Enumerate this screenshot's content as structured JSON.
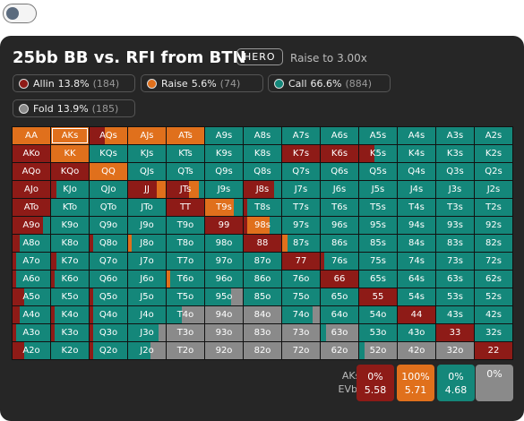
{
  "header": {
    "title": "25bb BB vs. RFI from BTN",
    "badge": "HERO",
    "subtitle": "Raise to 3.00x"
  },
  "legend": [
    {
      "name": "Allin",
      "pct": "13.8%",
      "combos": "(184)",
      "color": "#8e1b17"
    },
    {
      "name": "Raise",
      "pct": "5.6%",
      "combos": "(74)",
      "color": "#e0701c"
    },
    {
      "name": "Call",
      "pct": "66.6%",
      "combos": "(884)",
      "color": "#14877a"
    },
    {
      "name": "Fold",
      "pct": "13.9%",
      "combos": "(185)",
      "color": "#8a8a8a"
    }
  ],
  "grid": {
    "selected": "AKs",
    "labels": [
      [
        "AA",
        "AKs",
        "AQs",
        "AJs",
        "ATs",
        "A9s",
        "A8s",
        "A7s",
        "A6s",
        "A5s",
        "A4s",
        "A3s",
        "A2s"
      ],
      [
        "AKo",
        "KK",
        "KQs",
        "KJs",
        "KTs",
        "K9s",
        "K8s",
        "K7s",
        "K6s",
        "K5s",
        "K4s",
        "K3s",
        "K2s"
      ],
      [
        "AQo",
        "KQo",
        "QQ",
        "QJs",
        "QTs",
        "Q9s",
        "Q8s",
        "Q7s",
        "Q6s",
        "Q5s",
        "Q4s",
        "Q3s",
        "Q2s"
      ],
      [
        "AJo",
        "KJo",
        "QJo",
        "JJ",
        "JTs",
        "J9s",
        "J8s",
        "J7s",
        "J6s",
        "J5s",
        "J4s",
        "J3s",
        "J2s"
      ],
      [
        "ATo",
        "KTo",
        "QTo",
        "JTo",
        "TT",
        "T9s",
        "T8s",
        "T7s",
        "T6s",
        "T5s",
        "T4s",
        "T3s",
        "T2s"
      ],
      [
        "A9o",
        "K9o",
        "Q9o",
        "J9o",
        "T9o",
        "99",
        "98s",
        "97s",
        "96s",
        "95s",
        "94s",
        "93s",
        "92s"
      ],
      [
        "A8o",
        "K8o",
        "Q8o",
        "J8o",
        "T8o",
        "98o",
        "88",
        "87s",
        "86s",
        "85s",
        "84s",
        "83s",
        "82s"
      ],
      [
        "A7o",
        "K7o",
        "Q7o",
        "J7o",
        "T7o",
        "97o",
        "87o",
        "77",
        "76s",
        "75s",
        "74s",
        "73s",
        "72s"
      ],
      [
        "A6o",
        "K6o",
        "Q6o",
        "J6o",
        "T6o",
        "96o",
        "86o",
        "76o",
        "66",
        "65s",
        "64s",
        "63s",
        "62s"
      ],
      [
        "A5o",
        "K5o",
        "Q5o",
        "J5o",
        "T5o",
        "95o",
        "85o",
        "75o",
        "65o",
        "55",
        "54s",
        "53s",
        "52s"
      ],
      [
        "A4o",
        "K4o",
        "Q4o",
        "J4o",
        "T4o",
        "94o",
        "84o",
        "74o",
        "64o",
        "54o",
        "44",
        "43s",
        "42s"
      ],
      [
        "A3o",
        "K3o",
        "Q3o",
        "J3o",
        "T3o",
        "93o",
        "83o",
        "73o",
        "63o",
        "53o",
        "43o",
        "33",
        "32s"
      ],
      [
        "A2o",
        "K2o",
        "Q2o",
        "J2o",
        "T2o",
        "92o",
        "82o",
        "72o",
        "62o",
        "52o",
        "42o",
        "32o",
        "22"
      ]
    ],
    "mix": [
      [
        [
          0,
          100,
          0,
          0
        ],
        [
          0,
          100,
          0,
          0
        ],
        [
          40,
          60,
          0,
          0
        ],
        [
          0,
          100,
          0,
          0
        ],
        [
          0,
          100,
          0,
          0
        ],
        [
          0,
          0,
          100,
          0
        ],
        [
          0,
          0,
          100,
          0
        ],
        [
          0,
          0,
          100,
          0
        ],
        [
          0,
          0,
          100,
          0
        ],
        [
          0,
          0,
          100,
          0
        ],
        [
          0,
          0,
          100,
          0
        ],
        [
          0,
          0,
          100,
          0
        ],
        [
          0,
          0,
          100,
          0
        ]
      ],
      [
        [
          100,
          0,
          0,
          0
        ],
        [
          0,
          100,
          0,
          0
        ],
        [
          0,
          0,
          100,
          0
        ],
        [
          0,
          0,
          100,
          0
        ],
        [
          0,
          0,
          100,
          0
        ],
        [
          0,
          0,
          100,
          0
        ],
        [
          0,
          0,
          100,
          0
        ],
        [
          100,
          0,
          0,
          0
        ],
        [
          100,
          0,
          0,
          0
        ],
        [
          40,
          0,
          60,
          0
        ],
        [
          0,
          0,
          100,
          0
        ],
        [
          0,
          0,
          100,
          0
        ],
        [
          0,
          0,
          100,
          0
        ]
      ],
      [
        [
          100,
          0,
          0,
          0
        ],
        [
          100,
          0,
          0,
          0
        ],
        [
          0,
          100,
          0,
          0
        ],
        [
          0,
          0,
          100,
          0
        ],
        [
          0,
          0,
          100,
          0
        ],
        [
          0,
          0,
          100,
          0
        ],
        [
          0,
          0,
          100,
          0
        ],
        [
          0,
          0,
          100,
          0
        ],
        [
          0,
          0,
          100,
          0
        ],
        [
          0,
          0,
          100,
          0
        ],
        [
          0,
          0,
          100,
          0
        ],
        [
          0,
          0,
          100,
          0
        ],
        [
          0,
          0,
          100,
          0
        ]
      ],
      [
        [
          100,
          0,
          0,
          0
        ],
        [
          15,
          0,
          85,
          0
        ],
        [
          0,
          0,
          100,
          0
        ],
        [
          75,
          25,
          0,
          0
        ],
        [
          60,
          25,
          15,
          0
        ],
        [
          0,
          0,
          100,
          0
        ],
        [
          80,
          0,
          20,
          0
        ],
        [
          0,
          0,
          100,
          0
        ],
        [
          0,
          0,
          100,
          0
        ],
        [
          0,
          0,
          100,
          0
        ],
        [
          0,
          0,
          100,
          0
        ],
        [
          0,
          0,
          100,
          0
        ],
        [
          0,
          0,
          100,
          0
        ]
      ],
      [
        [
          100,
          0,
          0,
          0
        ],
        [
          0,
          0,
          100,
          0
        ],
        [
          0,
          0,
          100,
          0
        ],
        [
          0,
          0,
          100,
          0
        ],
        [
          100,
          0,
          0,
          0
        ],
        [
          0,
          75,
          25,
          0
        ],
        [
          10,
          0,
          90,
          0
        ],
        [
          0,
          0,
          100,
          0
        ],
        [
          0,
          0,
          100,
          0
        ],
        [
          0,
          0,
          100,
          0
        ],
        [
          0,
          0,
          100,
          0
        ],
        [
          0,
          0,
          100,
          0
        ],
        [
          0,
          0,
          100,
          0
        ]
      ],
      [
        [
          80,
          0,
          20,
          0
        ],
        [
          0,
          0,
          100,
          0
        ],
        [
          0,
          0,
          100,
          0
        ],
        [
          0,
          0,
          100,
          0
        ],
        [
          0,
          0,
          100,
          0
        ],
        [
          100,
          0,
          0,
          0
        ],
        [
          10,
          60,
          30,
          0
        ],
        [
          0,
          0,
          100,
          0
        ],
        [
          0,
          0,
          100,
          0
        ],
        [
          0,
          0,
          100,
          0
        ],
        [
          0,
          0,
          100,
          0
        ],
        [
          0,
          0,
          100,
          0
        ],
        [
          0,
          0,
          100,
          0
        ]
      ],
      [
        [
          20,
          0,
          80,
          0
        ],
        [
          0,
          0,
          100,
          0
        ],
        [
          10,
          0,
          90,
          0
        ],
        [
          0,
          10,
          90,
          0
        ],
        [
          0,
          0,
          100,
          0
        ],
        [
          0,
          0,
          100,
          0
        ],
        [
          100,
          0,
          0,
          0
        ],
        [
          0,
          15,
          85,
          0
        ],
        [
          0,
          0,
          100,
          0
        ],
        [
          0,
          0,
          100,
          0
        ],
        [
          0,
          0,
          100,
          0
        ],
        [
          0,
          0,
          100,
          0
        ],
        [
          0,
          0,
          100,
          0
        ]
      ],
      [
        [
          10,
          0,
          90,
          0
        ],
        [
          15,
          0,
          85,
          0
        ],
        [
          0,
          0,
          100,
          0
        ],
        [
          0,
          0,
          100,
          0
        ],
        [
          0,
          0,
          100,
          0
        ],
        [
          0,
          0,
          100,
          0
        ],
        [
          0,
          0,
          100,
          0
        ],
        [
          100,
          0,
          0,
          0
        ],
        [
          10,
          0,
          90,
          0
        ],
        [
          0,
          0,
          100,
          0
        ],
        [
          0,
          0,
          100,
          0
        ],
        [
          0,
          0,
          100,
          0
        ],
        [
          0,
          0,
          100,
          0
        ]
      ],
      [
        [
          10,
          0,
          90,
          0
        ],
        [
          10,
          0,
          90,
          0
        ],
        [
          0,
          0,
          100,
          0
        ],
        [
          0,
          0,
          100,
          0
        ],
        [
          0,
          10,
          90,
          0
        ],
        [
          0,
          0,
          100,
          0
        ],
        [
          0,
          0,
          100,
          0
        ],
        [
          0,
          0,
          100,
          0
        ],
        [
          100,
          0,
          0,
          0
        ],
        [
          0,
          0,
          100,
          0
        ],
        [
          0,
          0,
          100,
          0
        ],
        [
          0,
          0,
          100,
          0
        ],
        [
          0,
          0,
          100,
          0
        ]
      ],
      [
        [
          30,
          0,
          70,
          0
        ],
        [
          0,
          0,
          100,
          0
        ],
        [
          10,
          0,
          90,
          0
        ],
        [
          0,
          0,
          100,
          0
        ],
        [
          0,
          0,
          100,
          0
        ],
        [
          0,
          0,
          70,
          30
        ],
        [
          0,
          0,
          100,
          0
        ],
        [
          0,
          0,
          100,
          0
        ],
        [
          0,
          0,
          100,
          0
        ],
        [
          100,
          0,
          0,
          0
        ],
        [
          0,
          0,
          100,
          0
        ],
        [
          0,
          0,
          100,
          0
        ],
        [
          0,
          0,
          100,
          0
        ]
      ],
      [
        [
          20,
          0,
          80,
          0
        ],
        [
          10,
          0,
          90,
          0
        ],
        [
          10,
          0,
          90,
          0
        ],
        [
          0,
          0,
          100,
          0
        ],
        [
          0,
          0,
          40,
          60
        ],
        [
          0,
          0,
          0,
          100
        ],
        [
          0,
          0,
          0,
          100
        ],
        [
          0,
          0,
          80,
          20
        ],
        [
          0,
          0,
          100,
          0
        ],
        [
          0,
          0,
          100,
          0
        ],
        [
          100,
          0,
          0,
          0
        ],
        [
          0,
          0,
          100,
          0
        ],
        [
          0,
          0,
          100,
          0
        ]
      ],
      [
        [
          10,
          0,
          90,
          0
        ],
        [
          10,
          0,
          90,
          0
        ],
        [
          10,
          0,
          90,
          0
        ],
        [
          0,
          0,
          80,
          20
        ],
        [
          0,
          0,
          0,
          100
        ],
        [
          0,
          0,
          0,
          100
        ],
        [
          0,
          0,
          0,
          100
        ],
        [
          0,
          0,
          0,
          100
        ],
        [
          0,
          0,
          15,
          85
        ],
        [
          0,
          0,
          100,
          0
        ],
        [
          0,
          0,
          100,
          0
        ],
        [
          100,
          0,
          0,
          0
        ],
        [
          0,
          0,
          100,
          0
        ]
      ],
      [
        [
          30,
          0,
          70,
          0
        ],
        [
          0,
          0,
          100,
          0
        ],
        [
          10,
          0,
          90,
          0
        ],
        [
          0,
          0,
          60,
          40
        ],
        [
          0,
          0,
          0,
          100
        ],
        [
          0,
          0,
          0,
          100
        ],
        [
          0,
          0,
          0,
          100
        ],
        [
          0,
          0,
          0,
          100
        ],
        [
          0,
          0,
          0,
          100
        ],
        [
          0,
          0,
          15,
          85
        ],
        [
          0,
          0,
          0,
          100
        ],
        [
          0,
          0,
          0,
          100
        ],
        [
          100,
          0,
          0,
          0
        ]
      ]
    ]
  },
  "detail": {
    "hand": "AKs:",
    "ev_label": "EVbb",
    "boxes": [
      {
        "pct": "0%",
        "ev": "5.58",
        "color": "#8e1b17"
      },
      {
        "pct": "100%",
        "ev": "5.71",
        "color": "#e0701c"
      },
      {
        "pct": "0%",
        "ev": "4.68",
        "color": "#14877a"
      },
      {
        "pct": "0%",
        "color": "#8a8a8a"
      }
    ]
  }
}
